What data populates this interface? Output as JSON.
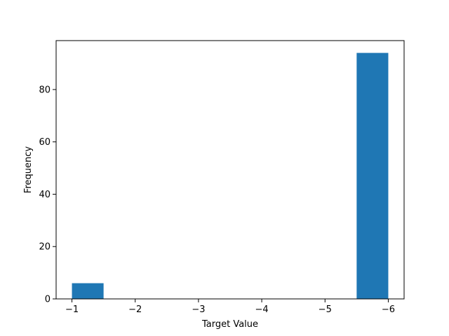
{
  "chart_data": {
    "type": "bar",
    "subtype": "histogram",
    "title": "",
    "xlabel": "Target Value",
    "ylabel": "Frequency",
    "x_axis_inverted": true,
    "xlim": [
      -0.75,
      -6.25
    ],
    "ylim": [
      0,
      98.7
    ],
    "x_ticks": [
      -1,
      -2,
      -3,
      -4,
      -5,
      -6
    ],
    "x_tick_labels": [
      "−1",
      "−2",
      "−3",
      "−4",
      "−5",
      "−6"
    ],
    "y_ticks": [
      0,
      20,
      40,
      60,
      80
    ],
    "y_tick_labels": [
      "0",
      "20",
      "40",
      "60",
      "80"
    ],
    "bars": [
      {
        "x0": -1.0,
        "x1": -1.5,
        "value": 6
      },
      {
        "x0": -1.5,
        "x1": -2.0,
        "value": 0
      },
      {
        "x0": -2.0,
        "x1": -2.5,
        "value": 0
      },
      {
        "x0": -2.5,
        "x1": -3.0,
        "value": 0
      },
      {
        "x0": -3.0,
        "x1": -3.5,
        "value": 0
      },
      {
        "x0": -3.5,
        "x1": -4.0,
        "value": 0
      },
      {
        "x0": -4.0,
        "x1": -4.5,
        "value": 0
      },
      {
        "x0": -4.5,
        "x1": -5.0,
        "value": 0
      },
      {
        "x0": -5.0,
        "x1": -5.5,
        "value": 0
      },
      {
        "x0": -5.5,
        "x1": -6.0,
        "value": 94
      }
    ],
    "bar_color": "#1f77b4",
    "grid": false,
    "legend": "none"
  }
}
